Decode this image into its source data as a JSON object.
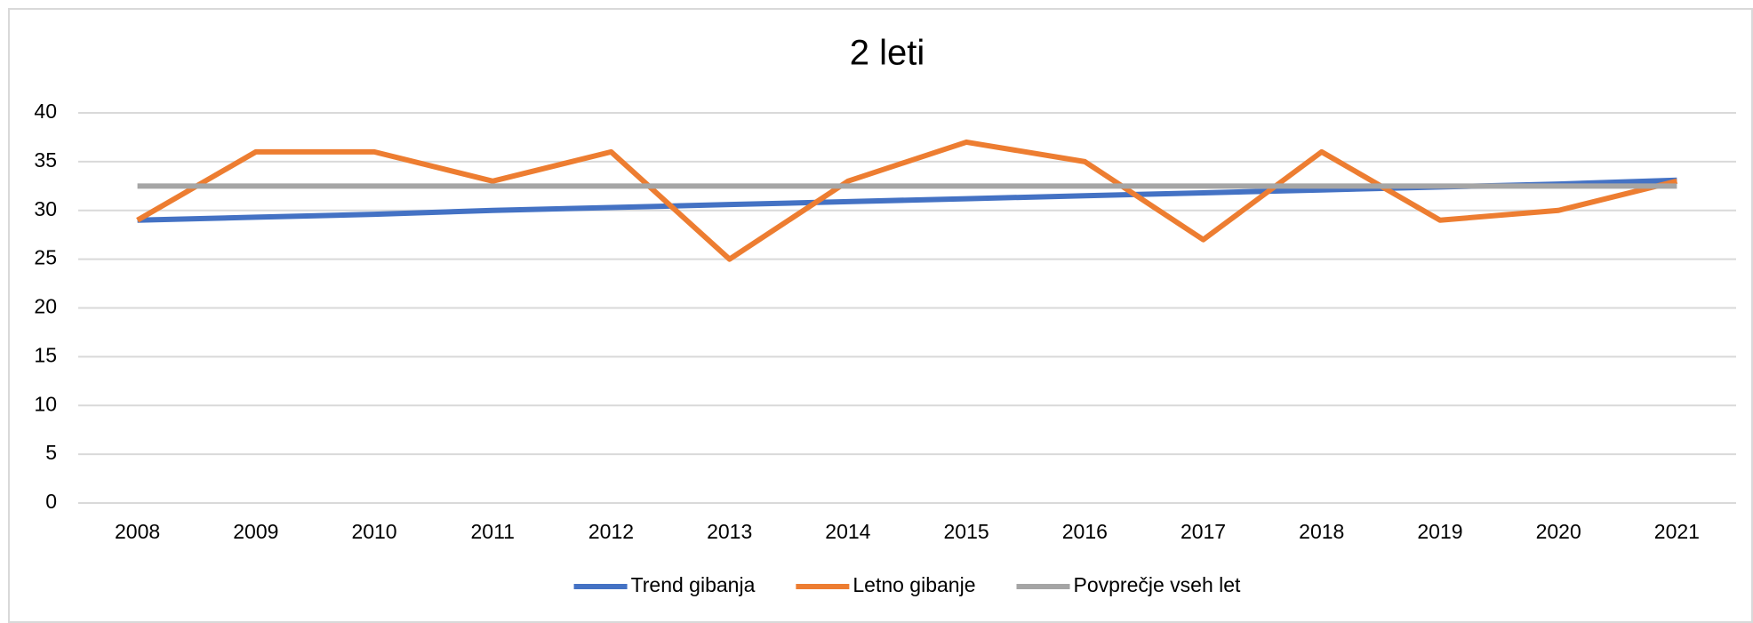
{
  "chart_data": {
    "type": "line",
    "title": "2 leti",
    "categories": [
      "2008",
      "2009",
      "2010",
      "2011",
      "2012",
      "2013",
      "2014",
      "2015",
      "2016",
      "2017",
      "2018",
      "2019",
      "2020",
      "2021"
    ],
    "series": [
      {
        "name": "Trend gibanja",
        "color": "#4472c4",
        "values": [
          29.0,
          29.3,
          29.6,
          30.0,
          30.3,
          30.6,
          30.9,
          31.2,
          31.5,
          31.8,
          32.1,
          32.4,
          32.7,
          33.1
        ]
      },
      {
        "name": "Letno gibanje",
        "color": "#ed7d31",
        "values": [
          29,
          36,
          36,
          33,
          36,
          25,
          33,
          37,
          35,
          27,
          36,
          29,
          30,
          33
        ]
      },
      {
        "name": "Povprečje vseh let",
        "color": "#a5a5a5",
        "values": [
          32.5,
          32.5,
          32.5,
          32.5,
          32.5,
          32.5,
          32.5,
          32.5,
          32.5,
          32.5,
          32.5,
          32.5,
          32.5,
          32.5
        ]
      }
    ],
    "ylim": [
      0,
      40
    ],
    "yticks": [
      0,
      5,
      10,
      15,
      20,
      25,
      30,
      35,
      40
    ],
    "grid": true,
    "legend": "bottom"
  }
}
